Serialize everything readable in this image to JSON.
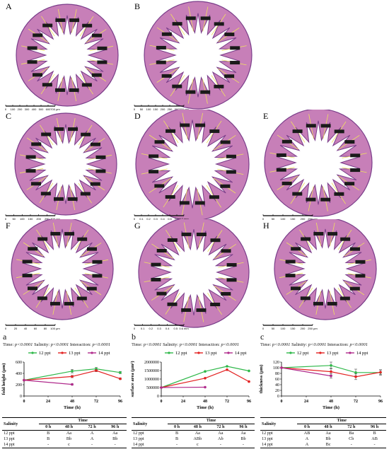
{
  "histology": {
    "panels": [
      {
        "label": "A",
        "scale_ticks": [
          "0",
          "100",
          "200",
          "300",
          "400",
          "500",
          "600",
          "700 µm"
        ]
      },
      {
        "label": "B",
        "scale_ticks": [
          "0",
          "50",
          "100",
          "150",
          "200",
          "250",
          "300",
          "350 µm"
        ]
      },
      {
        "label": "C",
        "scale_ticks": [
          "0",
          "50",
          "100",
          "150",
          "200",
          "250",
          "300 µm"
        ]
      },
      {
        "label": "D",
        "scale_ticks": [
          "0",
          "0.1",
          "0.2",
          "0.3",
          "0.4",
          "0.5",
          "0.6",
          "0.7 mm"
        ]
      },
      {
        "label": "E",
        "scale_ticks": [
          "0",
          "50",
          "100",
          "150",
          "200",
          "250 µm"
        ]
      },
      {
        "label": "F",
        "scale_ticks": [
          "0",
          "20",
          "40",
          "60",
          "80",
          "100 µm"
        ]
      },
      {
        "label": "G",
        "scale_ticks": [
          "0",
          "0.1",
          "0.2",
          "0.3",
          "0.4",
          "0.5",
          "0.6 mm"
        ]
      },
      {
        "label": "H",
        "scale_ticks": [
          "0",
          "50",
          "100",
          "150",
          "200",
          "250 µm"
        ]
      }
    ],
    "colors": {
      "tissue": "#c77fb8",
      "tissue_dark": "#7a3d8a",
      "lumen": "#ffffff",
      "measure": "#f0e060",
      "tag": "#1a1a1a"
    }
  },
  "charts": [
    {
      "panel_label": "a",
      "stats_prefix": "Time:",
      "stats_time": "p<0.0001",
      "stats_salinity_prefix": "Salinity:",
      "stats_salinity": "p<0.0001",
      "stats_interaction_prefix": "Interaction:",
      "stats_interaction": "p<0.0001",
      "table": {
        "time_header": "Time",
        "salinity_header": "Salinity",
        "cols": [
          "0 h",
          "48 h",
          "72 h",
          "96 h"
        ],
        "rows": [
          {
            "label": "12 ppt",
            "cells": [
              "B",
              "Aa",
              "A",
              "Aa"
            ]
          },
          {
            "label": "13 ppt",
            "cells": [
              "B",
              "Bb",
              "A",
              "Bb"
            ]
          },
          {
            "label": "14 ppt",
            "cells": [
              "-",
              "c",
              "-",
              "-"
            ]
          }
        ]
      }
    },
    {
      "panel_label": "b",
      "stats_prefix": "Time:",
      "stats_time": "p<0.0001",
      "stats_salinity_prefix": "Salinity:",
      "stats_salinity": "p<0.0001",
      "stats_interaction_prefix": "Interaction:",
      "stats_interaction": "p<0.0001",
      "table": {
        "time_header": "Time",
        "salinity_header": "Salinity",
        "cols": [
          "0 h",
          "48 h",
          "72 h",
          "96 h"
        ],
        "rows": [
          {
            "label": "12 ppt",
            "cells": [
              "B",
              "Aa",
              "Aa",
              "Aa"
            ]
          },
          {
            "label": "13 ppt",
            "cells": [
              "B",
              "ABb",
              "Ab",
              "Bb"
            ]
          },
          {
            "label": "14 ppt",
            "cells": [
              "-",
              "c",
              "-",
              "-"
            ]
          }
        ]
      }
    },
    {
      "panel_label": "c",
      "stats_prefix": "Time:",
      "stats_time": "p<0.0001",
      "stats_salinity_prefix": "Salinity:",
      "stats_salinity": "p<0.0001",
      "stats_interaction_prefix": "Interaction:",
      "stats_interaction": "p<0.0001",
      "table": {
        "time_header": "Time",
        "salinity_header": "Salinity",
        "cols": [
          "0 h",
          "48 h",
          "72 h",
          "96 h"
        ],
        "rows": [
          {
            "label": "12 ppt",
            "cells": [
              "AB",
              "Aa",
              "Ba",
              "B"
            ]
          },
          {
            "label": "13 ppt",
            "cells": [
              "A",
              "Bb",
              "Cb",
              "AB"
            ]
          },
          {
            "label": "14 ppt",
            "cells": [
              "A",
              "Bc",
              "-",
              "-"
            ]
          }
        ]
      }
    }
  ],
  "chart_data": [
    {
      "type": "line",
      "title": "",
      "xlabel": "Time (h)",
      "ylabel": "fold height (μm)",
      "x": [
        0,
        24,
        48,
        72,
        96
      ],
      "xticks": [
        "0",
        "24",
        "48",
        "72",
        "96"
      ],
      "ylim": [
        0,
        600
      ],
      "yticks": [
        "0",
        "200",
        "400",
        "600"
      ],
      "legend_position": "top",
      "series": [
        {
          "name": "12 ppt",
          "color": "#2fb84a",
          "x": [
            0,
            48,
            72,
            96
          ],
          "values": [
            280,
            440,
            480,
            415
          ],
          "err": [
            0,
            30,
            25,
            20
          ]
        },
        {
          "name": "13 ppt",
          "color": "#e32222",
          "x": [
            0,
            48,
            72,
            96
          ],
          "values": [
            280,
            345,
            450,
            305
          ],
          "err": [
            0,
            20,
            20,
            15
          ]
        },
        {
          "name": "14 ppt",
          "color": "#b02a8c",
          "x": [
            0,
            48
          ],
          "values": [
            280,
            205
          ],
          "err": [
            0,
            10
          ]
        }
      ]
    },
    {
      "type": "line",
      "title": "",
      "xlabel": "Time (h)",
      "ylabel": "surface area (μm²)",
      "x": [
        0,
        24,
        48,
        72,
        96
      ],
      "xticks": [
        "0",
        "24",
        "48",
        "72",
        "96"
      ],
      "ylim": [
        0,
        2000000
      ],
      "yticks": [
        "0",
        "500000",
        "1000000",
        "1500000",
        "2000000"
      ],
      "legend_position": "top",
      "series": [
        {
          "name": "12 ppt",
          "color": "#2fb84a",
          "x": [
            0,
            48,
            72,
            96
          ],
          "values": [
            500000,
            1450000,
            1750000,
            1480000
          ],
          "err": [
            0,
            0,
            0,
            0
          ]
        },
        {
          "name": "13 ppt",
          "color": "#e32222",
          "x": [
            0,
            48,
            72,
            96
          ],
          "values": [
            500000,
            1050000,
            1550000,
            850000
          ],
          "err": [
            0,
            0,
            0,
            0
          ]
        },
        {
          "name": "14 ppt",
          "color": "#b02a8c",
          "x": [
            0,
            48
          ],
          "values": [
            500000,
            520000
          ],
          "err": [
            0,
            0
          ]
        }
      ]
    },
    {
      "type": "line",
      "title": "",
      "xlabel": "Time (h)",
      "ylabel": "thickness (μm)",
      "x": [
        0,
        24,
        48,
        72,
        96
      ],
      "xticks": [
        "0",
        "24",
        "48",
        "72",
        "96"
      ],
      "ylim": [
        0,
        120
      ],
      "yticks": [
        "0",
        "20",
        "40",
        "60",
        "80",
        "100",
        "120"
      ],
      "legend_position": "top",
      "series": [
        {
          "name": "12 ppt",
          "color": "#2fb84a",
          "x": [
            0,
            48,
            72,
            96
          ],
          "values": [
            100,
            108,
            83,
            83
          ],
          "err": [
            0,
            12,
            12,
            10
          ]
        },
        {
          "name": "13 ppt",
          "color": "#e32222",
          "x": [
            0,
            48,
            72,
            96
          ],
          "values": [
            100,
            86,
            68,
            84
          ],
          "err": [
            0,
            12,
            10,
            8
          ]
        },
        {
          "name": "14 ppt",
          "color": "#b02a8c",
          "x": [
            0,
            48
          ],
          "values": [
            100,
            71
          ],
          "err": [
            0,
            8
          ]
        }
      ]
    }
  ]
}
